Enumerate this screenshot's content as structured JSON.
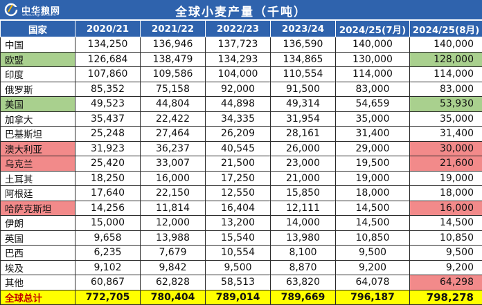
{
  "header": {
    "logo_text": "中华粮网",
    "logo_sub": "www.cngrain.com",
    "title": "全球小麦产量（千吨）",
    "brand_color": "#2f63ad"
  },
  "columns": [
    "国家",
    "2020/21",
    "2021/22",
    "2022/23",
    "2023/24",
    "2024/25(7月)",
    "2024/25(8月)"
  ],
  "rows": [
    {
      "country": "中国",
      "values": [
        "134,250",
        "136,946",
        "137,723",
        "136,590",
        "140,000",
        "140,000"
      ],
      "hl": ""
    },
    {
      "country": "欧盟",
      "values": [
        "126,684",
        "138,479",
        "134,293",
        "134,865",
        "130,000",
        "128,000"
      ],
      "hl": "green"
    },
    {
      "country": "印度",
      "values": [
        "107,860",
        "109,586",
        "104,000",
        "110,554",
        "114,000",
        "114,000"
      ],
      "hl": ""
    },
    {
      "country": "俄罗斯",
      "values": [
        "85,352",
        "75,158",
        "92,000",
        "91,500",
        "83,000",
        "83,000"
      ],
      "hl": ""
    },
    {
      "country": "美国",
      "values": [
        "49,523",
        "44,804",
        "44,898",
        "49,314",
        "54,659",
        "53,930"
      ],
      "hl": "green"
    },
    {
      "country": "加拿大",
      "values": [
        "35,437",
        "22,422",
        "34,335",
        "31,954",
        "35,000",
        "35,000"
      ],
      "hl": ""
    },
    {
      "country": "巴基斯坦",
      "values": [
        "25,248",
        "27,464",
        "26,209",
        "28,161",
        "31,400",
        "31,400"
      ],
      "hl": ""
    },
    {
      "country": "澳大利亚",
      "values": [
        "31,923",
        "36,237",
        "40,545",
        "26,000",
        "29,000",
        "30,000"
      ],
      "hl": "red"
    },
    {
      "country": "乌克兰",
      "values": [
        "25,420",
        "33,007",
        "21,500",
        "23,000",
        "19,500",
        "21,600"
      ],
      "hl": "red"
    },
    {
      "country": "土耳其",
      "values": [
        "18,250",
        "16,000",
        "17,250",
        "21,000",
        "19,000",
        "19,000"
      ],
      "hl": ""
    },
    {
      "country": "阿根廷",
      "values": [
        "17,640",
        "22,150",
        "12,550",
        "15,850",
        "18,000",
        "18,000"
      ],
      "hl": ""
    },
    {
      "country": "哈萨克斯坦",
      "values": [
        "14,256",
        "11,814",
        "16,404",
        "12,111",
        "14,500",
        "16,000"
      ],
      "hl": "red"
    },
    {
      "country": "伊朗",
      "values": [
        "15,000",
        "12,000",
        "13,200",
        "14,000",
        "14,500",
        "14,500"
      ],
      "hl": ""
    },
    {
      "country": "英国",
      "values": [
        "9,658",
        "13,988",
        "15,540",
        "13,980",
        "10,850",
        "10,850"
      ],
      "hl": ""
    },
    {
      "country": "巴西",
      "values": [
        "6,235",
        "7,679",
        "10,554",
        "8,100",
        "9,500",
        "9,500"
      ],
      "hl": ""
    },
    {
      "country": "埃及",
      "values": [
        "9,102",
        "9,842",
        "9,500",
        "8,870",
        "9,200",
        "9,200"
      ],
      "hl": ""
    },
    {
      "country": "其他",
      "values": [
        "60,867",
        "62,828",
        "58,513",
        "63,820",
        "64,078",
        "64,298"
      ],
      "hl": "red-last"
    }
  ],
  "total": {
    "country": "全球总计",
    "values": [
      "772,705",
      "780,404",
      "789,014",
      "789,669",
      "796,187",
      "798,278"
    ]
  },
  "colors": {
    "green": "#a9d08e",
    "red": "#f28a8a",
    "total": "#ffff00"
  }
}
